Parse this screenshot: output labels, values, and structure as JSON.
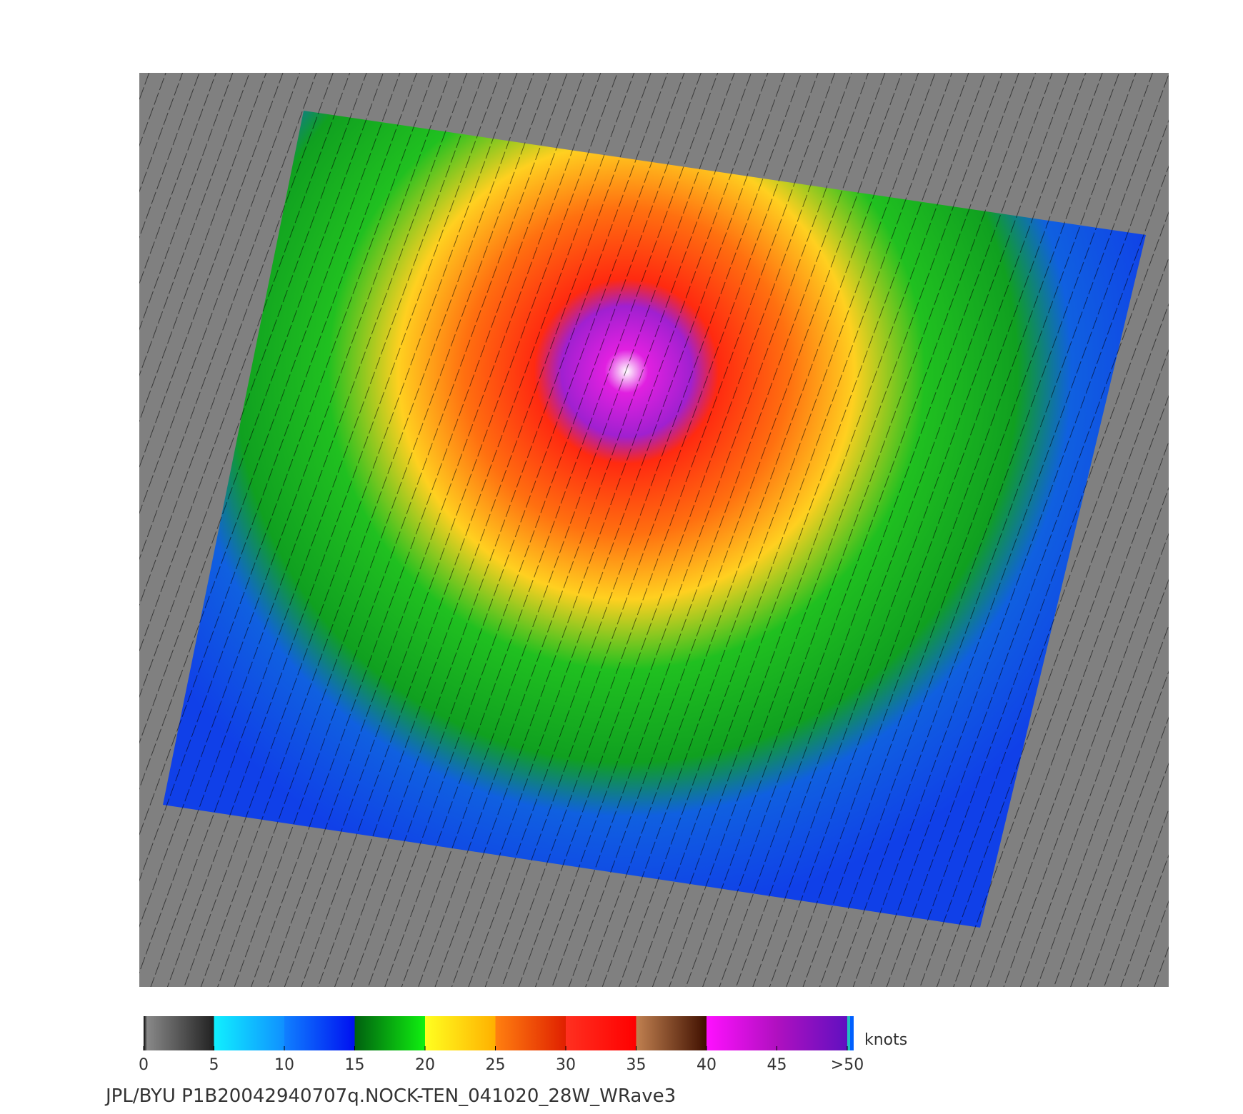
{
  "colorbar": {
    "ticks": [
      0,
      5,
      10,
      15,
      20,
      25,
      30,
      35,
      40,
      45,
      {
        "value": 50,
        "label": ">50"
      }
    ],
    "unit": "knots"
  },
  "caption": "JPL/BYU  P1B20042940707q.NOCK-TEN_041020_28W_WRave3"
}
